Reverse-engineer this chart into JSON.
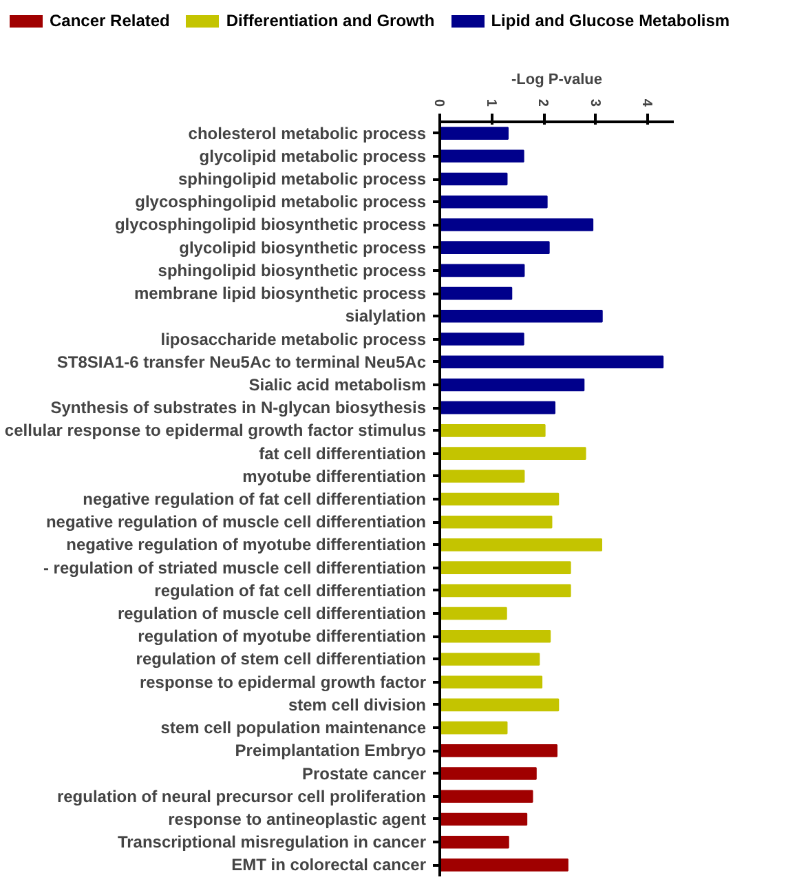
{
  "chart_data": {
    "type": "bar",
    "orientation": "horizontal",
    "xlabel": "-Log P-value",
    "xlim": [
      0,
      4.5
    ],
    "xticks": [
      0,
      1,
      2,
      3,
      4
    ],
    "grid": false,
    "legend": "top",
    "categories": [
      "cholesterol metabolic process",
      "glycolipid metabolic process",
      "sphingolipid metabolic process",
      "glycosphingolipid metabolic process",
      "glycosphingolipid biosynthetic process",
      "glycolipid biosynthetic process",
      "sphingolipid biosynthetic process",
      "membrane lipid biosynthetic process",
      "sialylation",
      "liposaccharide metabolic process",
      "ST8SIA1-6 transfer Neu5Ac to terminal Neu5Ac",
      "Sialic acid metabolism",
      "Synthesis of substrates in N-glycan biosythesis",
      "cellular response to epidermal growth factor stimulus",
      "fat cell differentiation",
      "myotube differentiation",
      "negative regulation of fat cell differentiation",
      "negative regulation of muscle cell differentiation",
      "negative regulation of myotube differentiation",
      "- regulation of striated muscle cell differentiation",
      "regulation of fat cell differentiation",
      "regulation of muscle cell differentiation",
      "regulation of myotube differentiation",
      "regulation of stem cell differentiation",
      "response to epidermal growth factor",
      "stem cell division",
      "stem cell population maintenance",
      "Preimplantation Embryo",
      "Prostate cancer",
      "regulation of neural precursor cell proliferation",
      "response to antineoplastic agent",
      "Transcriptional misregulation in cancer",
      "EMT in colorectal cancer"
    ],
    "series": [
      {
        "name": "Cancer Related",
        "color": "#a00000",
        "values": [
          null,
          null,
          null,
          null,
          null,
          null,
          null,
          null,
          null,
          null,
          null,
          null,
          null,
          null,
          null,
          null,
          null,
          null,
          null,
          null,
          null,
          null,
          null,
          null,
          null,
          null,
          null,
          2.25,
          1.85,
          1.78,
          1.67,
          1.32,
          2.46
        ]
      },
      {
        "name": "Differentiation and Growth",
        "color": "#c4c400",
        "values": [
          null,
          null,
          null,
          null,
          null,
          null,
          null,
          null,
          null,
          null,
          null,
          null,
          null,
          2.02,
          2.8,
          1.62,
          2.28,
          2.15,
          3.11,
          2.51,
          2.51,
          1.28,
          2.12,
          1.91,
          1.96,
          2.28,
          1.29,
          null,
          null,
          null,
          null,
          null,
          null
        ]
      },
      {
        "name": "Lipid and Glucose Metabolism",
        "color": "#00008b",
        "values": [
          1.31,
          1.61,
          1.29,
          2.06,
          2.94,
          2.1,
          1.62,
          1.38,
          3.12,
          1.61,
          4.29,
          2.77,
          2.21,
          null,
          null,
          null,
          null,
          null,
          null,
          null,
          null,
          null,
          null,
          null,
          null,
          null,
          null,
          null,
          null,
          null,
          null,
          null,
          null
        ]
      }
    ]
  }
}
